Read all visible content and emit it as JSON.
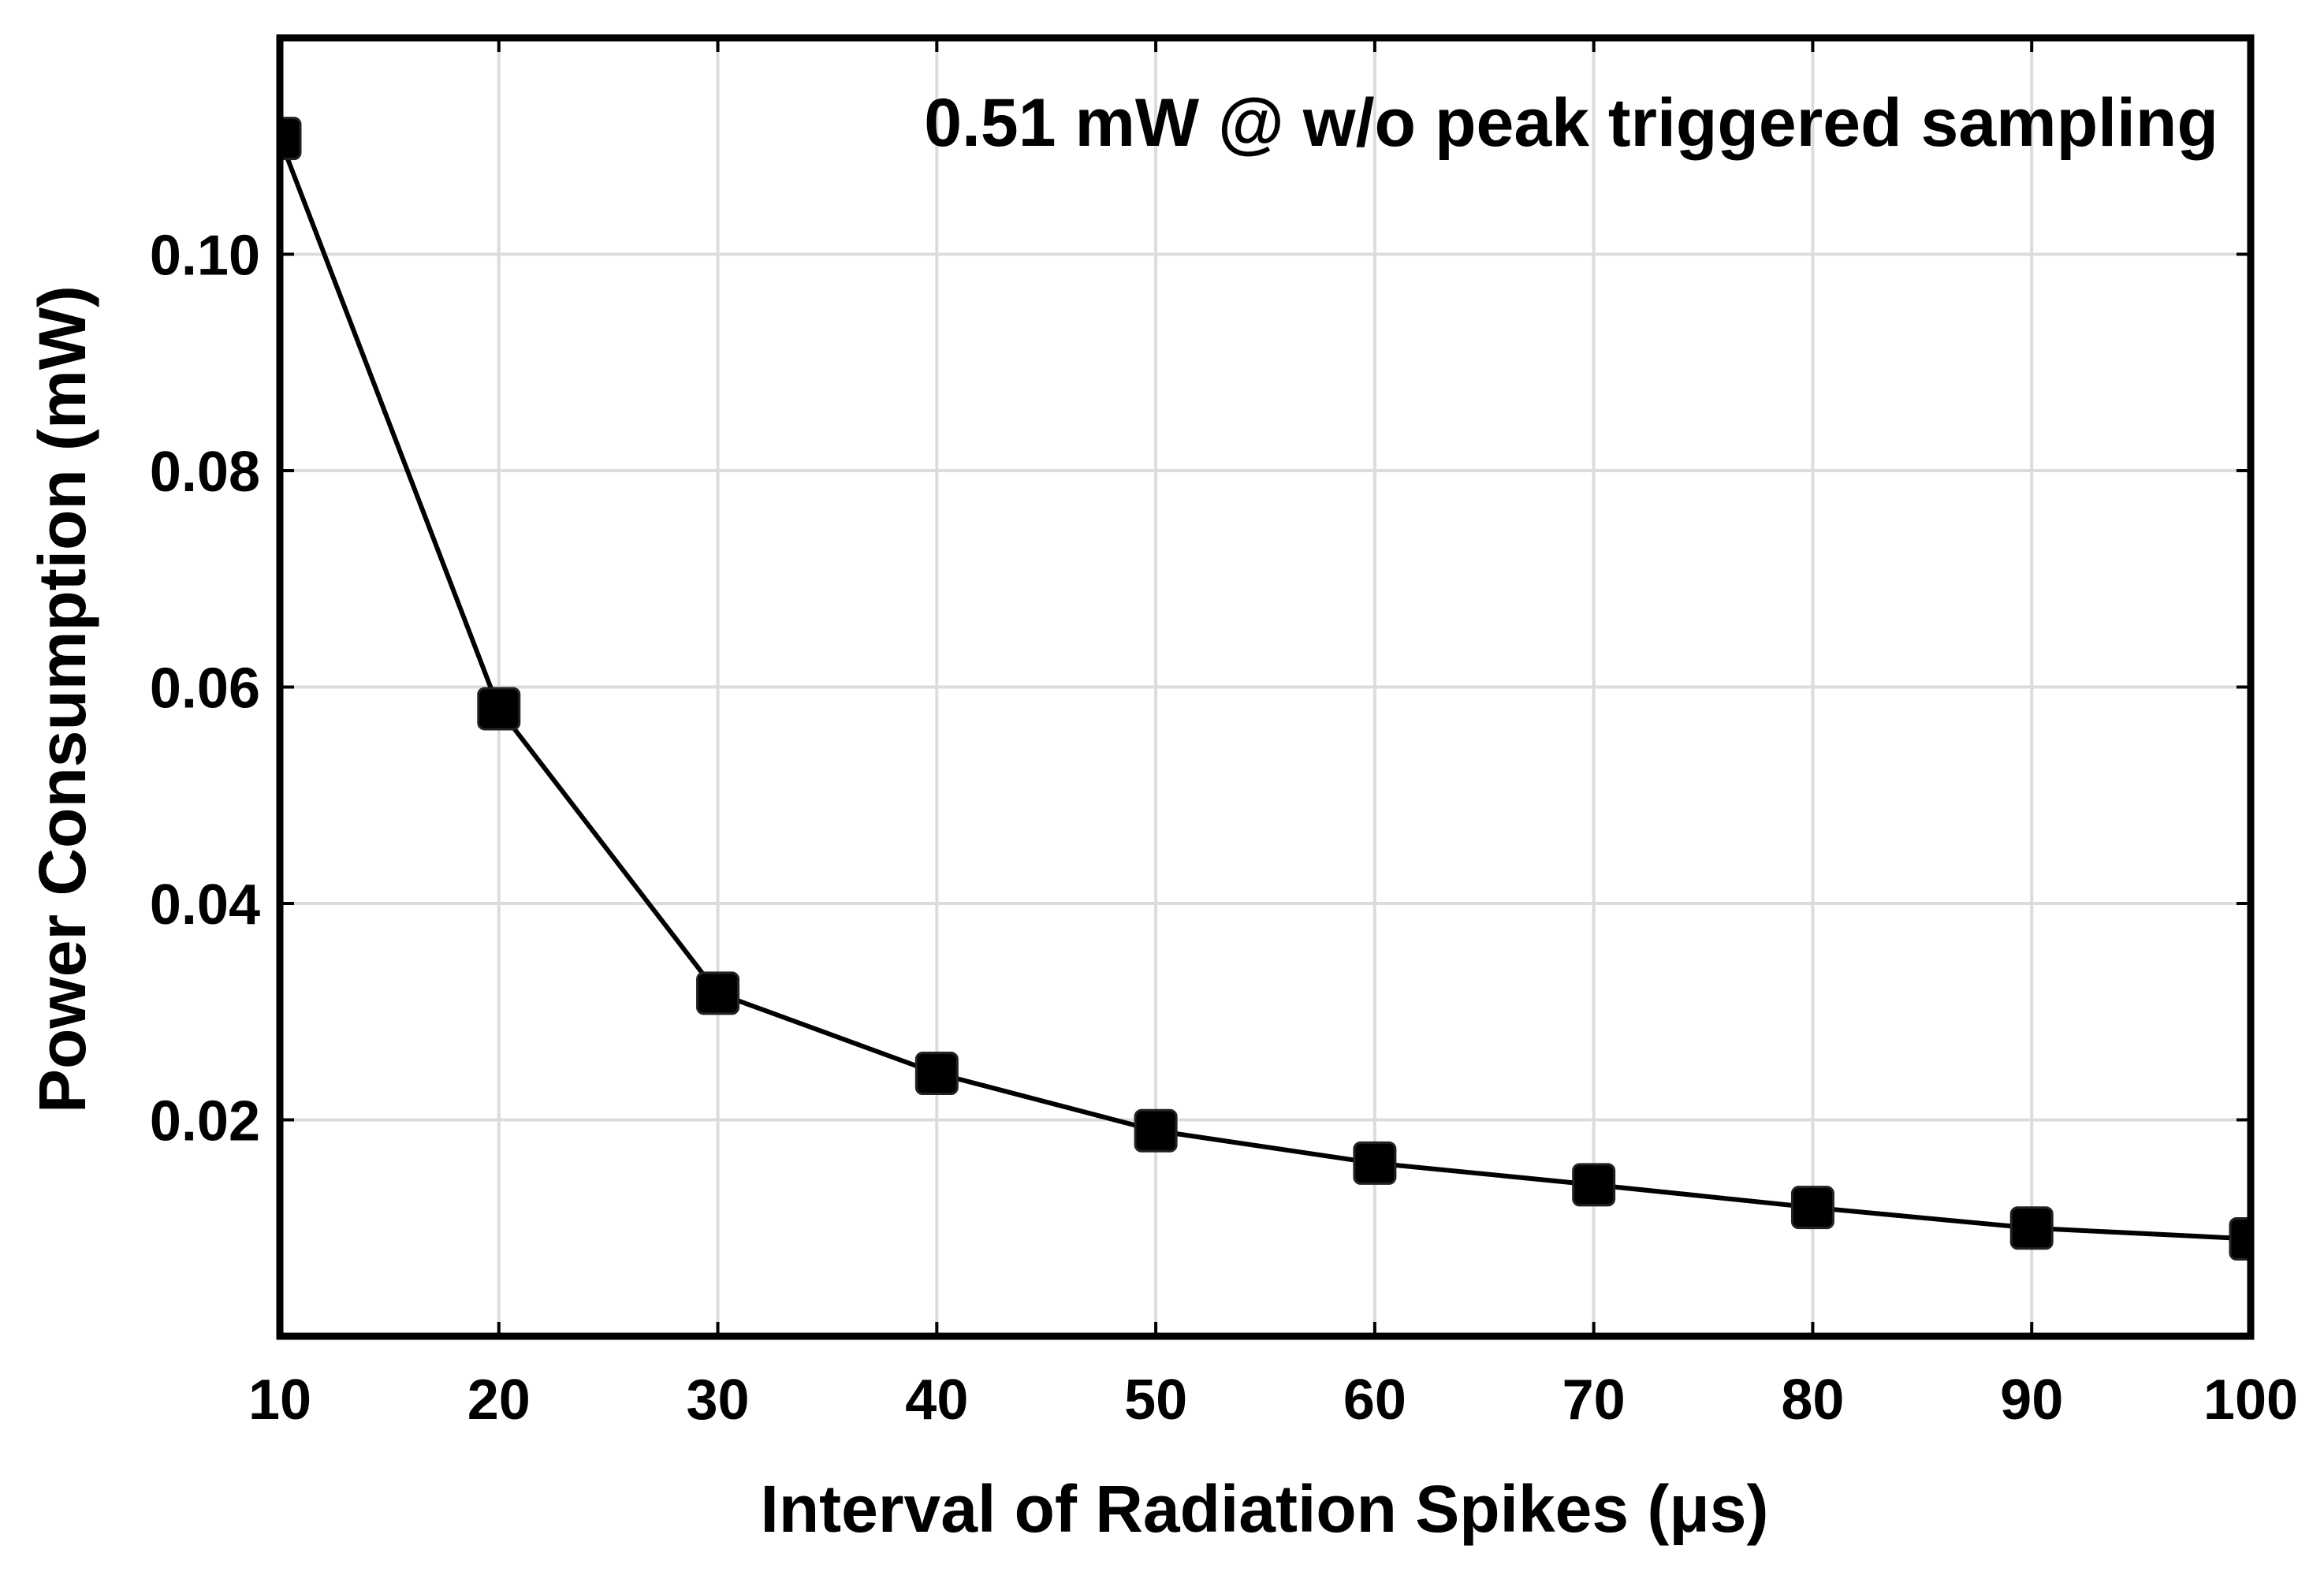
{
  "chart_data": {
    "type": "line",
    "title": "",
    "annotation": "0.51 mW @ w/o peak triggered sampling",
    "xlabel": "Interval of Radiation Spikes (μs)",
    "ylabel": "Power Consumption (mW)",
    "xlim": [
      10,
      100
    ],
    "ylim": [
      0,
      0.12
    ],
    "grid": true,
    "marker": "square",
    "colors": {
      "line": "#000000",
      "marker": "#000000",
      "grid": "#dcdcdc",
      "frame": "#000000",
      "background": "#ffffff"
    },
    "x_ticks": [
      10,
      20,
      30,
      40,
      50,
      60,
      70,
      80,
      90,
      100
    ],
    "x_tick_labels": [
      "10",
      "20",
      "30",
      "40",
      "50",
      "60",
      "70",
      "80",
      "90",
      "100"
    ],
    "y_ticks": [
      0.02,
      0.04,
      0.06,
      0.08,
      0.1
    ],
    "y_tick_labels": [
      "0.02",
      "0.04",
      "0.06",
      "0.08",
      "0.10"
    ],
    "series": [
      {
        "name": "Power Consumption",
        "x": [
          10,
          20,
          30,
          40,
          50,
          60,
          70,
          80,
          90,
          100
        ],
        "y": [
          0.1107,
          0.058,
          0.0317,
          0.0243,
          0.019,
          0.016,
          0.014,
          0.0119,
          0.01,
          0.009
        ]
      }
    ]
  }
}
